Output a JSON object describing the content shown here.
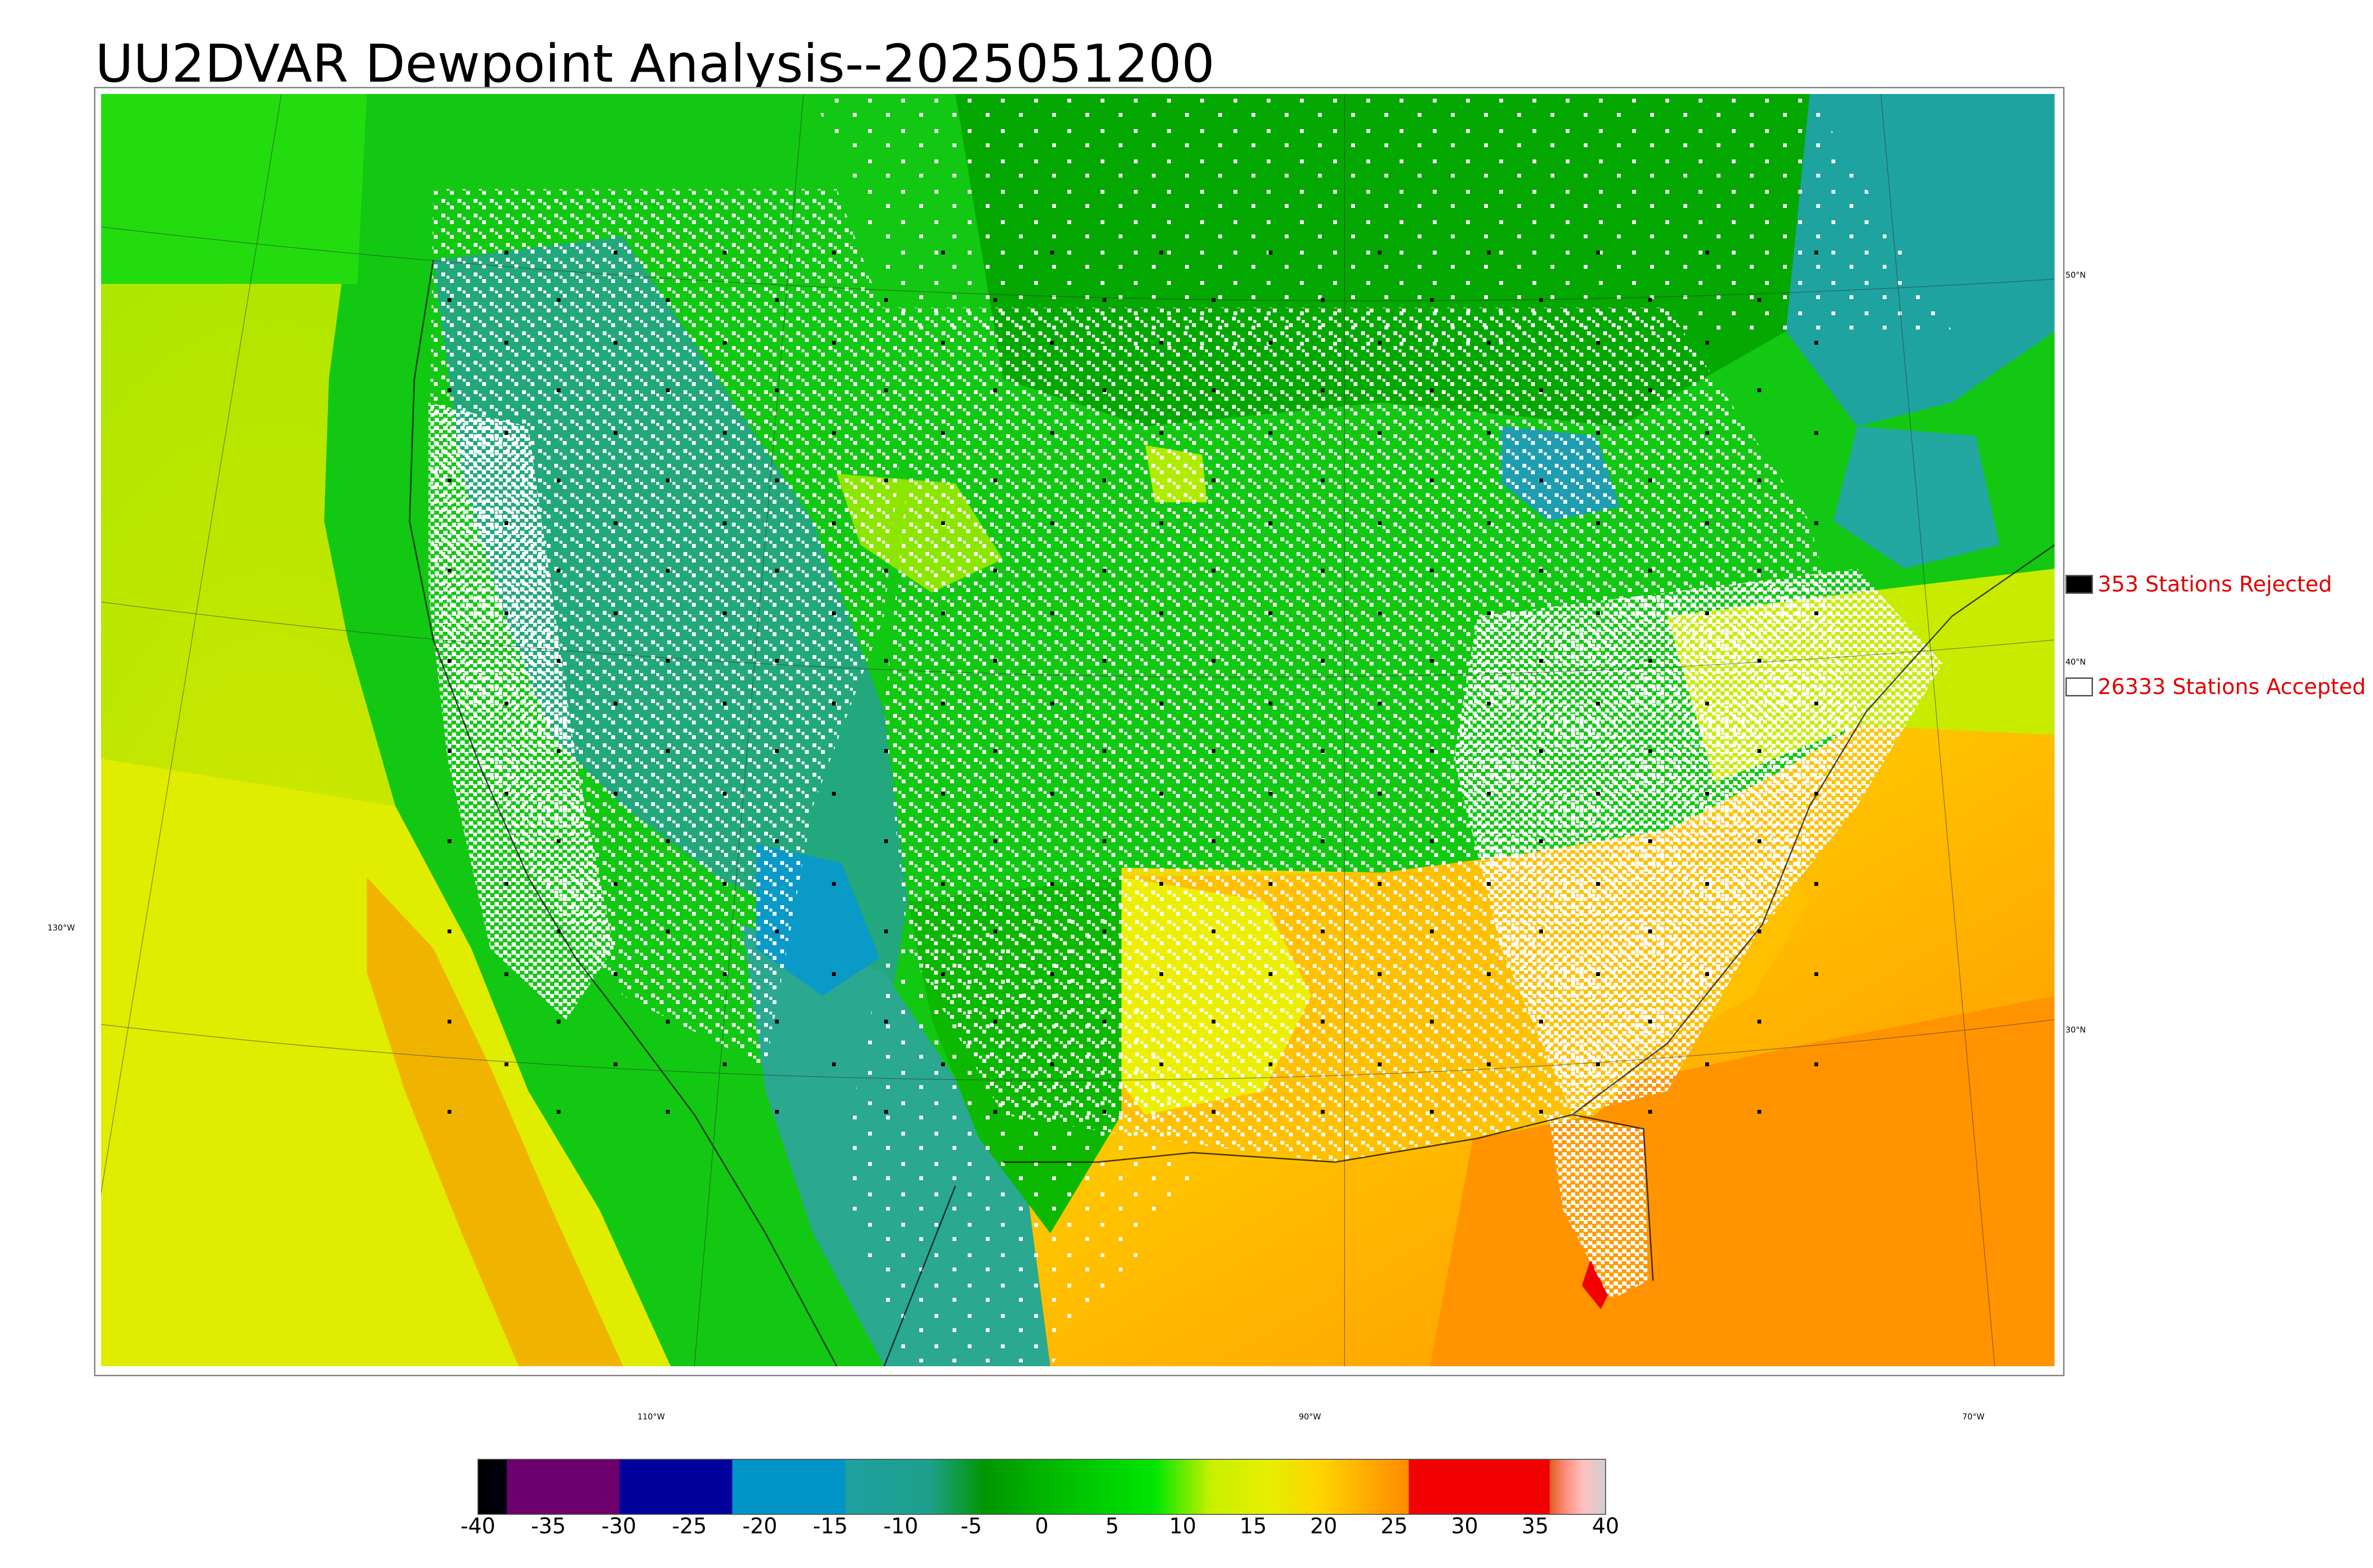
{
  "title": "UU2DVAR Dewpoint Analysis--2025051200",
  "map": {
    "latitude_labels": [
      "50°N",
      "40°N",
      "30°N"
    ],
    "longitude_labels": [
      "130°W",
      "110°W",
      "90°W",
      "70°W"
    ]
  },
  "legend": {
    "rejected": {
      "label": "353 Stations Rejected",
      "color": "#000000"
    },
    "accepted": {
      "label": "26333 Stations Accepted",
      "color": "#ffffff"
    }
  },
  "colorbar": {
    "ticks": [
      "-40",
      "-35",
      "-30",
      "-25",
      "-20",
      "-15",
      "-10",
      "-5",
      "0",
      "5",
      "10",
      "15",
      "20",
      "25",
      "30",
      "35",
      "40"
    ],
    "range": [
      -40,
      40
    ],
    "colors": {
      "purple": "#6e006e",
      "navy": "#00009b",
      "cyan": "#0094c8",
      "teal": "#1ea08c",
      "green_dark": "#009600",
      "green_bright": "#00e600",
      "yellow": "#e6f000",
      "orange": "#ffa000",
      "red": "#f00000",
      "pink": "#ffb0b0"
    }
  }
}
